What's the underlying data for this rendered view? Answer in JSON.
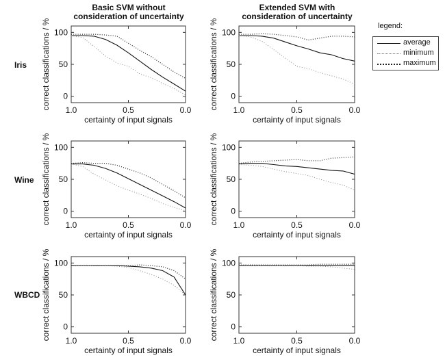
{
  "chart_data": {
    "type": "line",
    "column_titles": [
      "Basic SVM without\nconsideration of uncertainty",
      "Extended SVM with\nconsideration of uncertainty"
    ],
    "row_labels": [
      "Iris",
      "Wine",
      "WBCD"
    ],
    "xlabel": "certainty of input signals",
    "ylabel": "correct classifications / %",
    "xlim": [
      1.0,
      0.0
    ],
    "ylim": [
      -10,
      110
    ],
    "xticks": [
      "1.0",
      "0.5",
      "0.0"
    ],
    "yticks": [
      "0",
      "50",
      "100"
    ],
    "x": [
      1.0,
      0.9,
      0.8,
      0.7,
      0.6,
      0.5,
      0.4,
      0.3,
      0.2,
      0.1,
      0.0
    ],
    "legend": {
      "title": "legend:",
      "placement": "right",
      "entries": [
        {
          "name": "average",
          "style": "solid"
        },
        {
          "name": "minimum",
          "style": "dotted-light"
        },
        {
          "name": "maximum",
          "style": "dotted-dark"
        }
      ]
    },
    "panels": [
      {
        "row": "Iris",
        "column": "basic",
        "series": [
          {
            "name": "average",
            "values": [
              95,
              95,
              94,
              89,
              80,
              68,
              55,
              42,
              30,
              19,
              8
            ]
          },
          {
            "name": "minimum",
            "values": [
              95,
              92,
              78,
              63,
              52,
              47,
              35,
              29,
              20,
              12,
              2
            ]
          },
          {
            "name": "maximum",
            "values": [
              97,
              97,
              97,
              96,
              94,
              83,
              72,
              62,
              50,
              38,
              28
            ]
          }
        ]
      },
      {
        "row": "Iris",
        "column": "extended",
        "series": [
          {
            "name": "average",
            "values": [
              95,
              95,
              94,
              91,
              85,
              79,
              74,
              68,
              65,
              59,
              55
            ]
          },
          {
            "name": "minimum",
            "values": [
              95,
              93,
              86,
              73,
              60,
              47,
              43,
              37,
              32,
              27,
              19
            ]
          },
          {
            "name": "maximum",
            "values": [
              97,
              97,
              98,
              97,
              95,
              93,
              88,
              91,
              94,
              94,
              93
            ]
          }
        ]
      },
      {
        "row": "Wine",
        "column": "basic",
        "series": [
          {
            "name": "average",
            "values": [
              74,
              74,
              72,
              67,
              60,
              51,
              42,
              33,
              24,
              15,
              5
            ]
          },
          {
            "name": "minimum",
            "values": [
              74,
              70,
              58,
              49,
              40,
              33,
              27,
              20,
              12,
              6,
              1
            ]
          },
          {
            "name": "maximum",
            "values": [
              75,
              76,
              75,
              75,
              72,
              66,
              60,
              52,
              42,
              32,
              21
            ]
          }
        ]
      },
      {
        "row": "Wine",
        "column": "extended",
        "series": [
          {
            "name": "average",
            "values": [
              74,
              75,
              75,
              73,
              71,
              70,
              68,
              66,
              64,
              63,
              58
            ]
          },
          {
            "name": "minimum",
            "values": [
              73,
              72,
              70,
              66,
              62,
              59,
              56,
              50,
              45,
              41,
              33
            ]
          },
          {
            "name": "maximum",
            "values": [
              75,
              77,
              78,
              79,
              80,
              81,
              79,
              79,
              83,
              84,
              85
            ]
          }
        ]
      },
      {
        "row": "WBCD",
        "column": "basic",
        "series": [
          {
            "name": "average",
            "values": [
              96,
              96,
              96,
              96,
              96,
              95,
              94,
              92,
              88,
              78,
              50
            ]
          },
          {
            "name": "minimum",
            "values": [
              96,
              96,
              96,
              96,
              95,
              93,
              88,
              82,
              75,
              65,
              50
            ]
          },
          {
            "name": "maximum",
            "values": [
              96,
              96,
              96,
              96,
              96,
              96,
              97,
              96,
              94,
              88,
              75
            ]
          }
        ]
      },
      {
        "row": "WBCD",
        "column": "extended",
        "series": [
          {
            "name": "average",
            "values": [
              96,
              96,
              96,
              96,
              96,
              96,
              96,
              96,
              96,
              96,
              96
            ]
          },
          {
            "name": "minimum",
            "values": [
              96,
              96,
              96,
              96,
              96,
              96,
              95,
              95,
              94,
              92,
              90
            ]
          },
          {
            "name": "maximum",
            "values": [
              97,
              97,
              97,
              97,
              97,
              97,
              97,
              98,
              98,
              98,
              98
            ]
          }
        ]
      }
    ]
  }
}
